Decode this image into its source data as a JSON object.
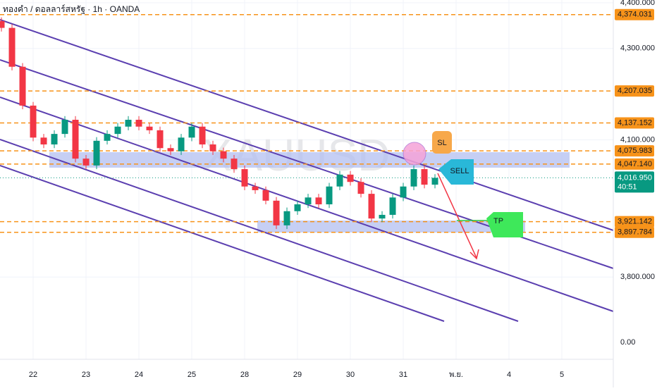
{
  "chart_data": {
    "type": "candlestick",
    "title": "ทองคำ / ดอลลาร์สหรัฐ · 1h · OANDA",
    "watermark": "XAUUSD",
    "x": [
      -0.6,
      -0.4,
      -0.2,
      0,
      0.2,
      0.4,
      0.6,
      0.8,
      1,
      1.2,
      1.4,
      1.6,
      1.8,
      2,
      2.2,
      2.4,
      2.6,
      2.8,
      3,
      3.2,
      3.4,
      3.6,
      3.8,
      4,
      4.2,
      4.4,
      4.6,
      4.8,
      5,
      5.2,
      5.4,
      5.6,
      5.8,
      6,
      6.2,
      6.4,
      6.6,
      6.8,
      7,
      7.2,
      7.4,
      7.6
    ],
    "open": [
      4360,
      4345,
      4260,
      4175,
      4105,
      4090,
      4113,
      4144,
      4059,
      4044,
      4098,
      4113,
      4129,
      4144,
      4129,
      4121,
      4082,
      4075,
      4105,
      4129,
      4090,
      4075,
      4059,
      4036,
      3998,
      3990,
      3967,
      3913,
      3944,
      3959,
      3974,
      3959,
      3998,
      4024,
      4008,
      3982,
      3928,
      3936,
      3974,
      3998,
      4036,
      4002
    ],
    "high": [
      4368,
      4353,
      4268,
      4183,
      4113,
      4121,
      4152,
      4152,
      4067,
      4106,
      4121,
      4137,
      4152,
      4152,
      4137,
      4129,
      4090,
      4113,
      4137,
      4137,
      4098,
      4083,
      4067,
      4044,
      4006,
      3998,
      3975,
      3952,
      3967,
      3982,
      3982,
      4006,
      4032,
      4032,
      4016,
      3990,
      3944,
      3982,
      4006,
      4044,
      4044,
      4025
    ],
    "low": [
      4337,
      4252,
      4167,
      4097,
      4082,
      4082,
      4105,
      4051,
      4036,
      4036,
      4090,
      4105,
      4121,
      4121,
      4113,
      4074,
      4067,
      4067,
      4097,
      4082,
      4067,
      4051,
      4028,
      3990,
      3982,
      3959,
      3905,
      3905,
      3936,
      3951,
      3951,
      3951,
      3990,
      4000,
      3974,
      3920,
      3920,
      3928,
      3966,
      3990,
      3994,
      3994
    ],
    "close": [
      4345,
      4260,
      4175,
      4105,
      4090,
      4113,
      4144,
      4059,
      4044,
      4098,
      4113,
      4129,
      4144,
      4129,
      4121,
      4082,
      4075,
      4105,
      4129,
      4090,
      4075,
      4059,
      4036,
      3998,
      3990,
      3967,
      3913,
      3944,
      3959,
      3974,
      3959,
      3998,
      4024,
      4008,
      3982,
      3928,
      3936,
      3974,
      3998,
      4036,
      4002,
      4017
    ],
    "up_color": "#089981",
    "down_color": "#f23645",
    "xlim": [
      -0.627,
      10.973
    ],
    "xticks": [
      {
        "value": 0,
        "label": "22"
      },
      {
        "value": 1,
        "label": "23"
      },
      {
        "value": 2,
        "label": "24"
      },
      {
        "value": 3,
        "label": "25"
      },
      {
        "value": 4,
        "label": "28"
      },
      {
        "value": 5,
        "label": "29"
      },
      {
        "value": 6,
        "label": "30"
      },
      {
        "value": 7,
        "label": "31"
      },
      {
        "value": 8,
        "label": "พ.ย."
      },
      {
        "value": 9,
        "label": "4"
      },
      {
        "value": 10,
        "label": "5"
      }
    ],
    "ylim": [
      3620,
      4406
    ],
    "yticks": [
      {
        "value": 4400,
        "label": "4,400.000"
      },
      {
        "value": 4300,
        "label": "4,300.000"
      },
      {
        "value": 4100,
        "label": "4,100.000"
      },
      {
        "value": 3800,
        "label": "3,800.000"
      }
    ],
    "bottom_label": "0.00",
    "level_color": "#f7931a",
    "levels": [
      {
        "value": 4374.031,
        "label": "4,374.031"
      },
      {
        "value": 4207.035,
        "label": "4,207.035"
      },
      {
        "value": 4137.152,
        "label": "4,137.152"
      },
      {
        "value": 4075.983,
        "label": "4,075.983"
      },
      {
        "value": 4047.14,
        "label": "4,047.140"
      },
      {
        "value": 3921.142,
        "label": "3,921.142"
      },
      {
        "value": 3897.784,
        "label": "3,897.784"
      }
    ],
    "current_price": {
      "value": 4016.95,
      "label": "4,016.950",
      "countdown": "40:51"
    },
    "annotations": {
      "sl": "SL",
      "sell": "SELL",
      "tp": "TP"
    }
  }
}
